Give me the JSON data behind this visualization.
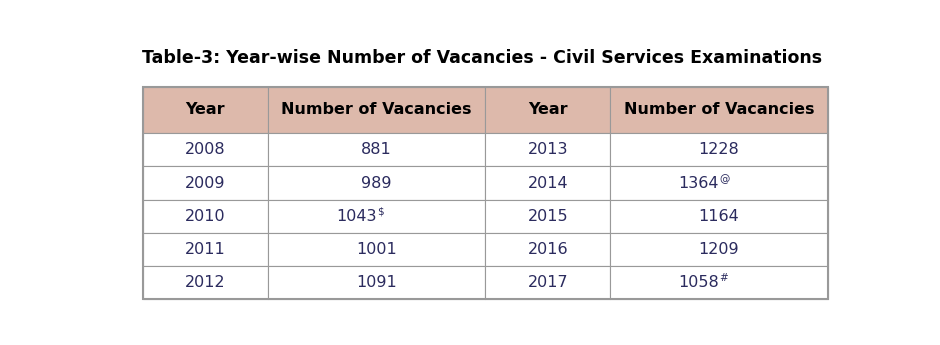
{
  "title": "Table-3: Year-wise Number of Vacancies - Civil Services Examinations",
  "col_headers": [
    "Year",
    "Number of Vacancies",
    "Year",
    "Number of Vacancies"
  ],
  "rows": [
    [
      "2008",
      "881",
      "2013",
      "1228"
    ],
    [
      "2009",
      "989",
      "2014",
      "1364@"
    ],
    [
      "2010",
      "1043$",
      "2015",
      "1164"
    ],
    [
      "2011",
      "1001",
      "2016",
      "1209"
    ],
    [
      "2012",
      "1091",
      "2017",
      "1058#"
    ]
  ],
  "superscripts": {
    "1364@": [
      "1364",
      "@"
    ],
    "1043$": [
      "1043",
      "$"
    ],
    "1058#": [
      "1058",
      "#"
    ]
  },
  "header_bg": "#ddb9ab",
  "row_bg_odd": "#ffffff",
  "row_bg_even": "#ffffff",
  "border_color": "#999999",
  "title_color": "#000000",
  "cell_text_color": "#2b2b5e",
  "header_text_color": "#000000",
  "fig_width": 9.4,
  "fig_height": 3.45,
  "title_fontsize": 12.5,
  "header_fontsize": 11.5,
  "cell_fontsize": 11.5,
  "super_fontsize": 7.5
}
